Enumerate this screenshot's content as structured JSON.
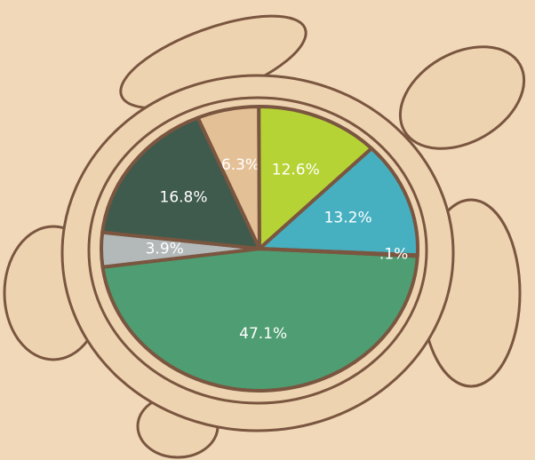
{
  "chart_data": {
    "type": "pie",
    "categories": [
      null,
      null,
      null,
      null,
      null,
      null,
      null
    ],
    "values": [
      47.1,
      3.9,
      16.8,
      6.3,
      12.6,
      13.2,
      0.1
    ],
    "value_labels": [
      "47.1%",
      "3.9%",
      "16.8%",
      "6.3%",
      "12.6%",
      "13.2%",
      ".1%"
    ],
    "colors": [
      "#4f9d72",
      "#b3b8b8",
      "#3f5b4d",
      "#e4c097",
      "#b6d335",
      "#46b0c1",
      "#b5541a"
    ]
  }
}
